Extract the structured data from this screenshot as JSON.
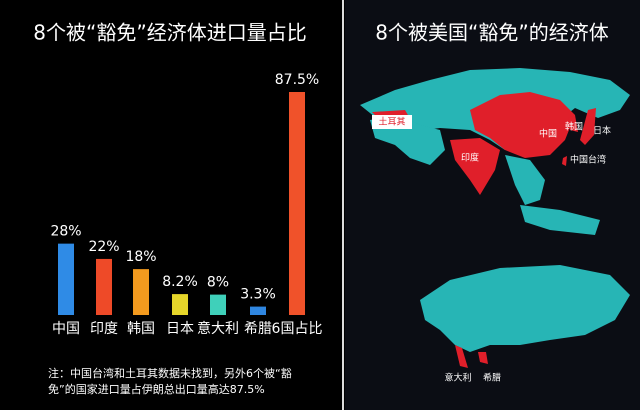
{
  "chart_data": {
    "type": "bar",
    "title": "8个被“豁免”经济体进口量占比",
    "categories": [
      "中国",
      "印度",
      "韩国",
      "日本",
      "意大利",
      "希腊",
      "6国占比"
    ],
    "values": [
      28,
      22,
      18,
      8.2,
      8,
      3.3,
      87.5
    ],
    "value_labels": [
      "28%",
      "22%",
      "18%",
      "8.2%",
      "8%",
      "3.3%",
      "87.5%"
    ],
    "colors": [
      "#2f8be6",
      "#ee4a28",
      "#f39a1e",
      "#e6d62a",
      "#3fd0ba",
      "#2f86e0",
      "#f0522a"
    ],
    "note": "注：中国台湾和土耳其数据未找到，另外6个被“豁免”的国家进口量占伊朗总出口量高达87.5%"
  },
  "map_panel": {
    "title": "8个被美国“豁免”的经济体",
    "labels": [
      "土耳其",
      "中国",
      "韩国",
      "日本",
      "印度",
      "中国台湾",
      "意大利",
      "希腊"
    ]
  }
}
